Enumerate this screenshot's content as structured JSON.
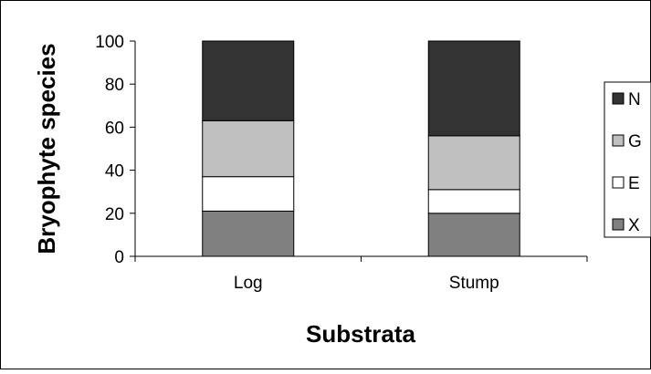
{
  "chart_data": {
    "type": "bar",
    "stacked": true,
    "title": "",
    "xlabel": "Substrata",
    "ylabel": "Bryophyte species",
    "ylim": [
      0,
      100
    ],
    "yticks": [
      0,
      20,
      40,
      60,
      80,
      100
    ],
    "categories": [
      "Log",
      "Stump"
    ],
    "series": [
      {
        "name": "X",
        "color": "#808080",
        "values": [
          21,
          20
        ]
      },
      {
        "name": "E",
        "color": "#ffffff",
        "values": [
          16,
          11
        ]
      },
      {
        "name": "G",
        "color": "#c0c0c0",
        "values": [
          26,
          25
        ]
      },
      {
        "name": "N",
        "color": "#333333",
        "values": [
          37,
          44
        ]
      }
    ],
    "legend_order": [
      "N",
      "G",
      "E",
      "X"
    ],
    "legend_position": "right",
    "grid": false
  }
}
